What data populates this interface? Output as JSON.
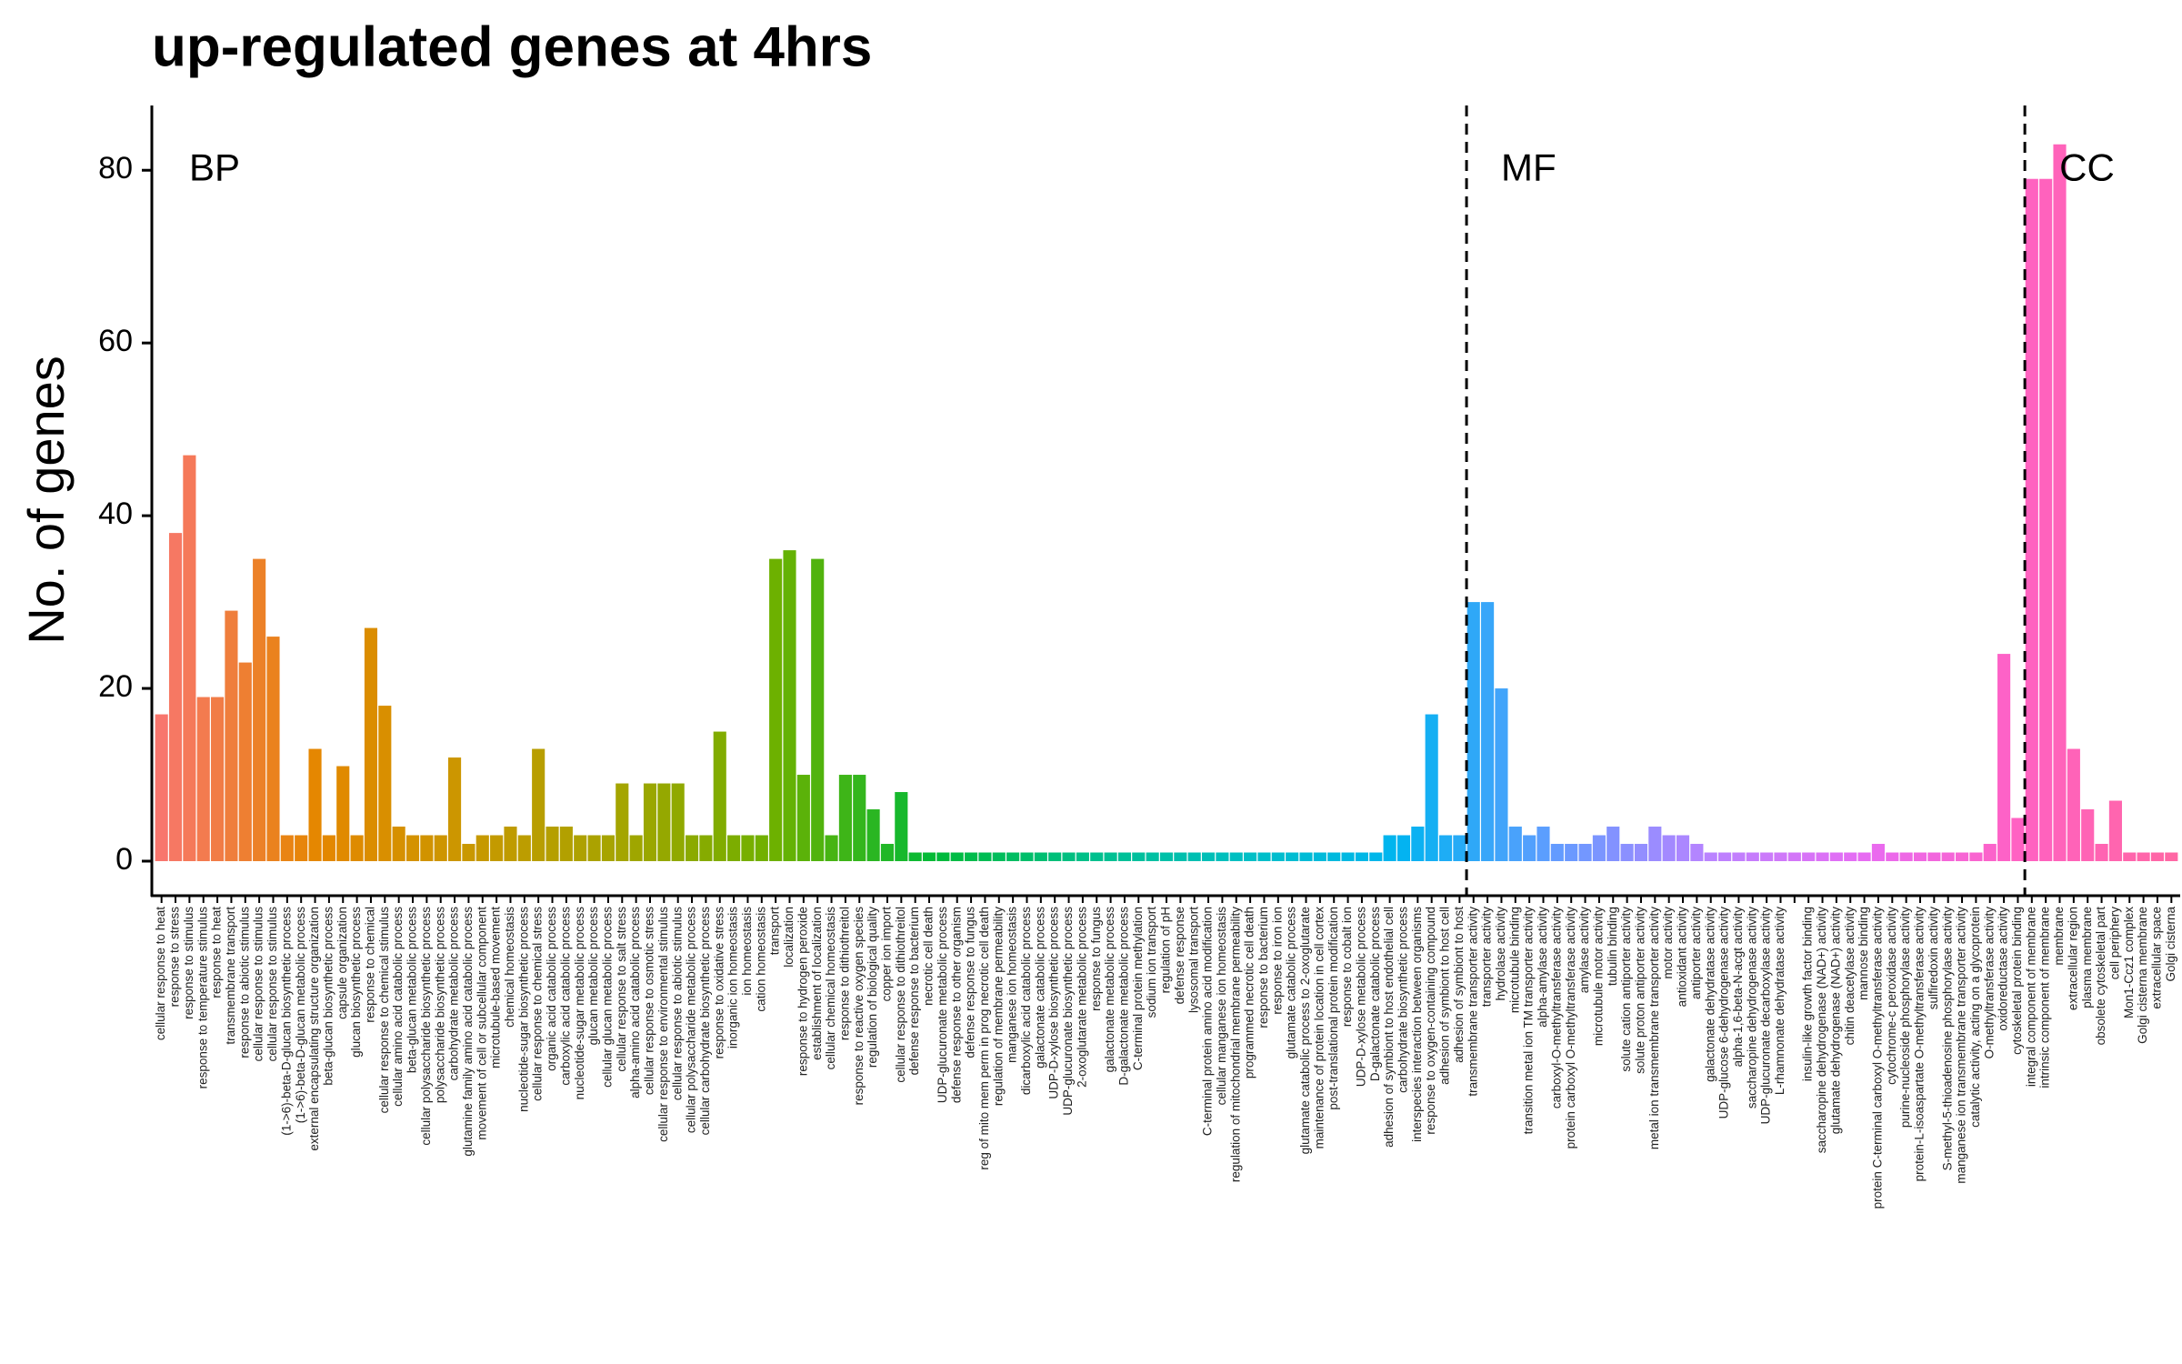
{
  "chart_data": {
    "type": "bar",
    "title": "up-regulated genes at 4hrs",
    "y_label": "No. of genes",
    "groups": [
      {
        "name": "BP",
        "size": 94
      },
      {
        "name": "MF",
        "size": 40
      },
      {
        "name": "CC",
        "size": 11
      }
    ],
    "categories": [
      "cellular response to heat",
      "response to stress",
      "response to stimulus",
      "response to temperature stimulus",
      "response to heat",
      "transmembrane transport",
      "response to abiotic stimulus",
      "cellular response to stimulus",
      "cellular response to stimulus",
      "(1->6)-beta-D-glucan biosynthetic process",
      "(1->6)-beta-D-glucan metabolic process",
      "external encapsulating structure organization",
      "beta-glucan biosynthetic process",
      "capsule organization",
      "glucan biosynthetic process",
      "response to chemical",
      "cellular response to chemical stimulus",
      "cellular amino acid catabolic process",
      "beta-glucan metabolic process",
      "cellular polysaccharide biosynthetic process",
      "polysaccharide biosynthetic process",
      "carbohydrate metabolic process",
      "glutamine family amino acid catabolic process",
      "movement of cell or subcellular component",
      "microtubule-based movement",
      "chemical homeostasis",
      "nucleotide-sugar biosynthetic process",
      "cellular response to chemical stress",
      "organic acid catabolic process",
      "carboxylic acid catabolic process",
      "nucleotide-sugar metabolic process",
      "glucan metabolic process",
      "cellular glucan metabolic process",
      "cellular response to salt stress",
      "alpha-amino acid catabolic process",
      "cellular response to osmotic stress",
      "cellular response to environmental stimulus",
      "cellular response to abiotic stimulus",
      "cellular polysaccharide metabolic process",
      "cellular carbohydrate biosynthetic process",
      "response to oxidative stress",
      "inorganic ion homeostasis",
      "ion homeostasis",
      "cation homeostasis",
      "transport",
      "localization",
      "response to hydrogen peroxide",
      "establishment of localization",
      "cellular chemical homeostasis",
      "response to dithiothreitol",
      "response to reactive oxygen species",
      "regulation of biological quality",
      "copper ion import",
      "cellular response to dithiothreitol",
      "defense response to bacterium",
      "necrotic cell death",
      "UDP-glucuronate metabolic process",
      "defense response to other organism",
      "defense response to fungus",
      "reg of mito mem perm in prog necrotic cell death",
      "regulation of membrane permeability",
      "manganese ion homeostasis",
      "dicarboxylic acid catabolic process",
      "galactonate catabolic process",
      "UDP-D-xylose biosynthetic process",
      "UDP-glucuronate biosynthetic process",
      "2-oxoglutarate metabolic process",
      "response to fungus",
      "galactonate metabolic process",
      "D-galactonate metabolic process",
      "C-terminal protein methylation",
      "sodium ion transport",
      "regulation of pH",
      "defense response",
      "lysosomal transport",
      "C-terminal protein amino acid modification",
      "cellular manganese ion homeostasis",
      "regulation of mitochondrial membrane permeability",
      "programmed necrotic cell death",
      "response to bacterium",
      "response to iron ion",
      "glutamate catabolic process",
      "glutamate catabolic process to 2-oxoglutarate",
      "maintenance of protein location in cell cortex",
      "post-translational protein modification",
      "response to cobalt ion",
      "UDP-D-xylose metabolic process",
      "D-galactonate catabolic process",
      "adhesion of symbiont to host endothelial cell",
      "carbohydrate biosynthetic process",
      "interspecies interaction between organisms",
      "response to oxygen-containing compound",
      "adhesion of symbiont to host cell",
      "adhesion of symbiont to host",
      "transmembrane transporter activity",
      "transporter activity",
      "hydrolase activity",
      "microtubule binding",
      "transition metal ion TM transporter activity",
      "alpha-amylase activity",
      "carboxyl-O-methyltransferase activity",
      "protein carboxyl O-methyltransferase activity",
      "amylase activity",
      "microtubule motor activity",
      "tubulin binding",
      "solute cation antiporter activity",
      "solute proton antiporter activity",
      "metal ion transmembrane transporter activity",
      "motor activity",
      "antioxidant activity",
      "antiporter activity",
      "galactonate dehydratase activity",
      "UDP-glucose 6-dehydrogenase activity",
      "alpha-1,6-beta-N-acgt activity",
      "saccharopine dehydrogenase activity",
      "UDP-glucuronate decarboxylase activity",
      "L-rhamnonate dehydratase activity",
      null,
      "insulin-like growth factor binding",
      "saccharopine dehydrogenase (NAD+) activity",
      "glutamate dehydrogenase (NAD+) activity",
      "chitin deacetylase activity",
      "mannose binding",
      "protein C-terminal carboxyl O-methyltransferase activity",
      "cytochrome-c peroxidase activity",
      "purine-nucleoside phosphorylase activity",
      "protein-L-isoaspartate O-methyltransferase activity",
      "sulfiredoxin activity",
      "S-methyl-5-thioadenosine phosphorylase activity",
      "manganese ion transmembrane transporter activity",
      "catalytic activity, acting on a glycoprotein",
      "O-methyltransferase activity",
      "oxidoreductase activity",
      "cytoskeletal protein binding",
      "integral component of membrane",
      "intrinsic component of membrane",
      "membrane",
      "extracellular region",
      "plasma membrane",
      "obsolete cytoskeletal part",
      "cell periphery",
      "Mon1-Ccz1 complex",
      "Golgi cisterna membrane",
      "extracellular space",
      "Golgi cisterna"
    ],
    "values": [
      17,
      38,
      47,
      19,
      19,
      29,
      23,
      35,
      26,
      3,
      3,
      13,
      3,
      11,
      3,
      27,
      18,
      4,
      3,
      3,
      3,
      12,
      2,
      3,
      3,
      4,
      3,
      13,
      4,
      4,
      3,
      3,
      3,
      9,
      3,
      9,
      9,
      9,
      3,
      3,
      15,
      3,
      3,
      3,
      35,
      36,
      10,
      35,
      3,
      10,
      10,
      6,
      2,
      8,
      1,
      1,
      1,
      1,
      1,
      1,
      1,
      1,
      1,
      1,
      1,
      1,
      1,
      1,
      1,
      1,
      1,
      1,
      1,
      1,
      1,
      1,
      1,
      1,
      1,
      1,
      1,
      1,
      1,
      1,
      1,
      1,
      1,
      1,
      3,
      3,
      4,
      17,
      3,
      3,
      30,
      30,
      20,
      4,
      3,
      4,
      2,
      2,
      2,
      3,
      4,
      2,
      2,
      4,
      3,
      3,
      2,
      1,
      1,
      1,
      1,
      1,
      1,
      1,
      1,
      1,
      1,
      1,
      1,
      2,
      1,
      1,
      1,
      1,
      1,
      1,
      1,
      2,
      24,
      5,
      79,
      79,
      83,
      13,
      6,
      2,
      7,
      1,
      1,
      1,
      1
    ],
    "palette": [
      "#f8766d",
      "#e58700",
      "#c99800",
      "#a3a500",
      "#6bb100",
      "#00ba38",
      "#00c08b",
      "#00bfc4",
      "#00b4f0",
      "#619cff",
      "#b983ff",
      "#e76bf3",
      "#ff61c3",
      "#ff67a4"
    ],
    "ylim": [
      -4,
      87.5
    ],
    "yticks": [
      0,
      20,
      40,
      60,
      80
    ],
    "grid": false
  }
}
